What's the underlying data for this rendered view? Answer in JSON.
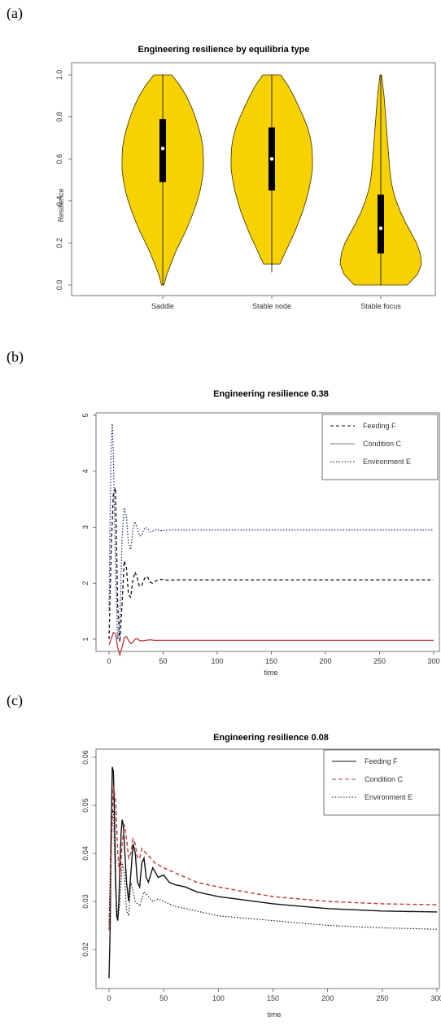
{
  "panels": {
    "a": {
      "label": "(a)"
    },
    "b": {
      "label": "(b)"
    },
    "c": {
      "label": "(c)"
    }
  },
  "colors": {
    "violin_fill": "#f7d100",
    "violin_stroke": "#3a3000",
    "condition": "#c0393b",
    "env_b": "#1a2a6b"
  },
  "chart_data": [
    {
      "type": "violin",
      "title": "Engineering resilience by equilibria type",
      "ylabel": "Resilience",
      "xlabel": "",
      "ylim": [
        0,
        1
      ],
      "yticks": [
        "0.0",
        "0.2",
        "0.4",
        "0.6",
        "0.8",
        "1.0"
      ],
      "categories": [
        "Saddle",
        "Stable node",
        "Stable focus"
      ],
      "median": [
        0.65,
        0.6,
        0.27
      ],
      "q1": [
        0.49,
        0.45,
        0.15
      ],
      "q3": [
        0.79,
        0.75,
        0.43
      ],
      "min": [
        0.0,
        0.06,
        0.0
      ],
      "max": [
        1.0,
        1.0,
        1.0
      ],
      "density_y": [
        0.0,
        0.05,
        0.1,
        0.15,
        0.2,
        0.25,
        0.3,
        0.35,
        0.4,
        0.45,
        0.5,
        0.55,
        0.6,
        0.65,
        0.7,
        0.75,
        0.8,
        0.85,
        0.9,
        0.95,
        1.0
      ],
      "density_width": [
        [
          0.03,
          0.1,
          0.2,
          0.3,
          0.42,
          0.55,
          0.66,
          0.76,
          0.85,
          0.92,
          0.97,
          1.0,
          1.0,
          0.99,
          0.95,
          0.88,
          0.8,
          0.7,
          0.58,
          0.42,
          0.22
        ],
        [
          0.0,
          0.0,
          0.2,
          0.32,
          0.44,
          0.56,
          0.66,
          0.76,
          0.84,
          0.91,
          0.96,
          1.0,
          1.0,
          0.99,
          0.95,
          0.88,
          0.78,
          0.66,
          0.54,
          0.4,
          0.22
        ],
        [
          0.65,
          0.9,
          1.0,
          0.97,
          0.88,
          0.74,
          0.6,
          0.48,
          0.38,
          0.3,
          0.25,
          0.22,
          0.2,
          0.18,
          0.16,
          0.14,
          0.12,
          0.1,
          0.08,
          0.05,
          0.02
        ]
      ]
    },
    {
      "type": "line",
      "title": "Engineering resilience 0.38",
      "xlabel": "time",
      "ylabel": "",
      "xlim": [
        0,
        300
      ],
      "ylim": [
        0.7,
        5.0
      ],
      "xticks": [
        "0",
        "50",
        "100",
        "150",
        "200",
        "250",
        "300"
      ],
      "yticks": [
        "1",
        "2",
        "3",
        "4",
        "5"
      ],
      "legend": "top-right",
      "series": [
        {
          "name": "Feeding F",
          "style": "dashed",
          "x": [
            0,
            2,
            4,
            6,
            8,
            10,
            12,
            14,
            16,
            18,
            20,
            22,
            24,
            26,
            28,
            30,
            32,
            34,
            36,
            38,
            40,
            44,
            48,
            52,
            56,
            60,
            70,
            80,
            100,
            150,
            200,
            250,
            300
          ],
          "y": [
            1.0,
            2.6,
            3.6,
            3.7,
            1.6,
            0.95,
            1.6,
            2.4,
            2.3,
            1.8,
            1.75,
            2.05,
            2.2,
            2.1,
            1.95,
            1.95,
            2.05,
            2.12,
            2.1,
            2.02,
            2.0,
            2.05,
            2.07,
            2.06,
            2.05,
            2.06,
            2.06,
            2.06,
            2.06,
            2.06,
            2.06,
            2.06,
            2.06
          ]
        },
        {
          "name": "Condition C",
          "style": "solid",
          "x": [
            0,
            2,
            4,
            6,
            8,
            10,
            12,
            14,
            16,
            18,
            20,
            22,
            24,
            26,
            28,
            30,
            34,
            38,
            42,
            50,
            60,
            80,
            100,
            150,
            200,
            250,
            300
          ],
          "y": [
            0.9,
            1.0,
            1.12,
            1.1,
            0.85,
            0.72,
            0.85,
            1.02,
            1.05,
            0.98,
            0.92,
            0.94,
            1.0,
            1.01,
            0.98,
            0.97,
            0.98,
            0.99,
            0.98,
            0.98,
            0.98,
            0.98,
            0.98,
            0.98,
            0.98,
            0.98,
            0.98
          ]
        },
        {
          "name": "Environment E",
          "style": "dotted",
          "x": [
            0,
            1,
            2,
            3,
            4,
            5,
            6,
            8,
            10,
            12,
            14,
            16,
            18,
            20,
            22,
            24,
            26,
            28,
            30,
            32,
            34,
            36,
            38,
            40,
            44,
            48,
            52,
            56,
            60,
            70,
            80,
            100,
            150,
            200,
            250,
            300
          ],
          "y": [
            1.5,
            3.2,
            4.5,
            4.85,
            4.3,
            3.3,
            2.2,
            1.0,
            1.3,
            2.8,
            3.35,
            3.2,
            2.7,
            2.6,
            2.95,
            3.1,
            3.0,
            2.85,
            2.85,
            2.95,
            3.0,
            2.97,
            2.92,
            2.93,
            2.96,
            2.94,
            2.95,
            2.95,
            2.95,
            2.95,
            2.95,
            2.95,
            2.95,
            2.95,
            2.95,
            2.95
          ]
        }
      ]
    },
    {
      "type": "line",
      "title": "Engineering resilience 0.08",
      "xlabel": "time",
      "ylabel": "",
      "xlim": [
        0,
        300
      ],
      "ylim": [
        0.012,
        0.06
      ],
      "xticks": [
        "0",
        "50",
        "100",
        "150",
        "200",
        "250",
        "300"
      ],
      "yticks": [
        "0.02",
        "0.03",
        "0.04",
        "0.05",
        "0.06"
      ],
      "legend": "top-right",
      "series": [
        {
          "name": "Feeding F",
          "style": "solid-dark",
          "x": [
            0,
            1,
            2,
            3,
            4,
            5,
            6,
            7,
            8,
            9,
            10,
            11,
            12,
            13,
            14,
            16,
            18,
            20,
            22,
            24,
            26,
            28,
            30,
            32,
            34,
            36,
            40,
            45,
            50,
            55,
            60,
            70,
            80,
            100,
            150,
            200,
            250,
            300
          ],
          "y": [
            0.014,
            0.024,
            0.045,
            0.058,
            0.057,
            0.048,
            0.035,
            0.027,
            0.026,
            0.03,
            0.038,
            0.044,
            0.047,
            0.046,
            0.042,
            0.034,
            0.03,
            0.036,
            0.042,
            0.04,
            0.034,
            0.033,
            0.038,
            0.039,
            0.035,
            0.034,
            0.037,
            0.035,
            0.0355,
            0.034,
            0.0335,
            0.033,
            0.032,
            0.031,
            0.0295,
            0.0285,
            0.028,
            0.0278
          ]
        },
        {
          "name": "Condition C",
          "style": "dashed-red",
          "x": [
            0,
            2,
            4,
            6,
            8,
            10,
            12,
            14,
            16,
            18,
            20,
            22,
            24,
            26,
            28,
            30,
            34,
            38,
            42,
            50,
            60,
            80,
            100,
            150,
            200,
            250,
            300
          ],
          "y": [
            0.024,
            0.04,
            0.054,
            0.051,
            0.04,
            0.035,
            0.042,
            0.046,
            0.043,
            0.039,
            0.04,
            0.043,
            0.042,
            0.039,
            0.039,
            0.041,
            0.04,
            0.039,
            0.038,
            0.037,
            0.036,
            0.034,
            0.033,
            0.031,
            0.03,
            0.0295,
            0.0293
          ]
        },
        {
          "name": "Environment E",
          "style": "dotted",
          "x": [
            0,
            2,
            4,
            6,
            8,
            10,
            12,
            14,
            16,
            18,
            20,
            24,
            28,
            32,
            36,
            40,
            45,
            50,
            60,
            80,
            100,
            150,
            200,
            250,
            300
          ],
          "y": [
            0.025,
            0.048,
            0.049,
            0.032,
            0.026,
            0.03,
            0.038,
            0.036,
            0.028,
            0.027,
            0.034,
            0.03,
            0.029,
            0.032,
            0.031,
            0.03,
            0.0305,
            0.03,
            0.029,
            0.028,
            0.027,
            0.026,
            0.025,
            0.0245,
            0.0242
          ]
        }
      ]
    }
  ]
}
